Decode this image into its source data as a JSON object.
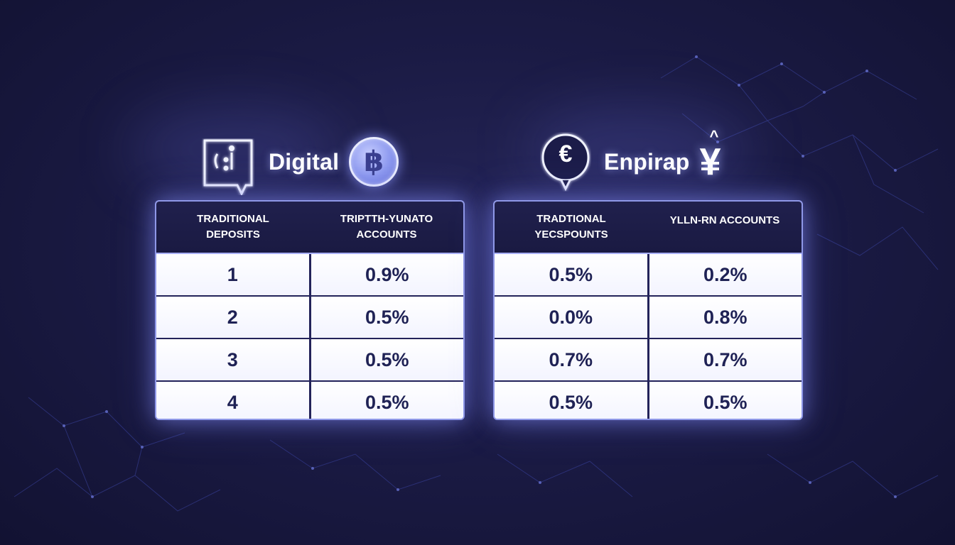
{
  "background_color": "#1b1b45",
  "accent_color": "#8f98e8",
  "left": {
    "title": "Digital",
    "left_icon": "chat-bubble-icon",
    "right_icon": "bitcoin-coin-icon",
    "coin_symbol": "฿",
    "headers": [
      "TRADITIONAL\nDEPOSITS",
      "TRIPTTH-YUNATO\nACCOUNTS"
    ],
    "rows": [
      [
        "1",
        "0.9%"
      ],
      [
        "2",
        "0.5%"
      ],
      [
        "3",
        "0.5%"
      ],
      [
        "4",
        "0.5%"
      ]
    ]
  },
  "right": {
    "title": "Enpirap",
    "left_icon": "euro-pin-icon",
    "right_icon": "yen-icon",
    "coin_symbol": "€",
    "yen_symbol": "¥",
    "headers": [
      "TRADTIONAL\nYECSPOUNTS",
      "YLLN-RN ACCOUNTS"
    ],
    "rows": [
      [
        "0.5%",
        "0.2%"
      ],
      [
        "0.0%",
        "0.8%"
      ],
      [
        "0.7%",
        "0.7%"
      ],
      [
        "0.5%",
        "0.5%"
      ]
    ]
  }
}
